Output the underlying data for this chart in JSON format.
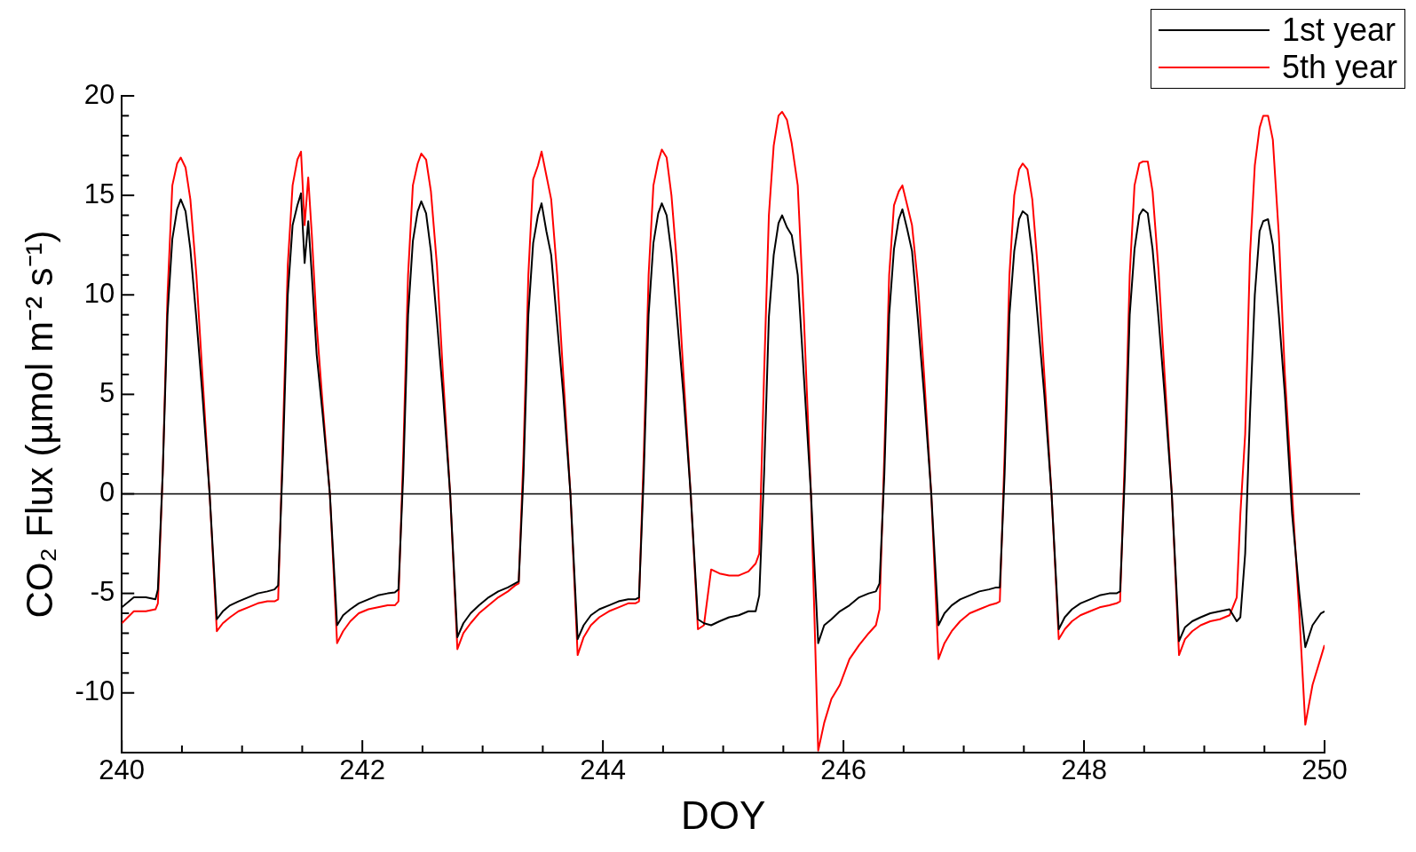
{
  "chart_data": {
    "type": "line",
    "xlabel": "DOY",
    "ylabel": "CO₂ Flux (µmol m⁻² s⁻¹)",
    "x": [
      240,
      240.1,
      240.2,
      240.28,
      240.3,
      240.34,
      240.38,
      240.42,
      240.46,
      240.49,
      240.53,
      240.57,
      240.62,
      240.67,
      240.73,
      240.79,
      240.84,
      240.9,
      240.97,
      241.05,
      241.13,
      241.21,
      241.27,
      241.3,
      241.34,
      241.38,
      241.42,
      241.46,
      241.49,
      241.52,
      241.55,
      241.58,
      241.62,
      241.67,
      241.73,
      241.79,
      241.84,
      241.9,
      241.97,
      242.05,
      242.13,
      242.21,
      242.27,
      242.3,
      242.34,
      242.38,
      242.42,
      242.46,
      242.49,
      242.53,
      242.57,
      242.62,
      242.67,
      242.73,
      242.79,
      242.84,
      242.9,
      242.97,
      243.05,
      243.13,
      243.21,
      243.27,
      243.3,
      243.34,
      243.38,
      243.42,
      243.46,
      243.49,
      243.53,
      243.57,
      243.62,
      243.67,
      243.73,
      243.79,
      243.84,
      243.9,
      243.97,
      244.05,
      244.13,
      244.21,
      244.27,
      244.3,
      244.34,
      244.38,
      244.42,
      244.46,
      244.49,
      244.53,
      244.57,
      244.62,
      244.67,
      244.73,
      244.79,
      244.84,
      244.9,
      244.97,
      245.05,
      245.13,
      245.21,
      245.27,
      245.3,
      245.34,
      245.38,
      245.42,
      245.46,
      245.49,
      245.53,
      245.57,
      245.62,
      245.67,
      245.73,
      245.79,
      245.84,
      245.9,
      245.97,
      246.05,
      246.13,
      246.21,
      246.27,
      246.3,
      246.34,
      246.38,
      246.42,
      246.46,
      246.49,
      246.53,
      246.57,
      246.62,
      246.67,
      246.73,
      246.79,
      246.84,
      246.9,
      246.97,
      247.05,
      247.13,
      247.21,
      247.27,
      247.3,
      247.34,
      247.38,
      247.42,
      247.46,
      247.49,
      247.53,
      247.57,
      247.62,
      247.67,
      247.73,
      247.79,
      247.84,
      247.9,
      247.97,
      248.05,
      248.13,
      248.21,
      248.27,
      248.3,
      248.34,
      248.38,
      248.42,
      248.46,
      248.49,
      248.53,
      248.57,
      248.62,
      248.67,
      248.73,
      248.79,
      248.84,
      248.9,
      248.97,
      249.05,
      249.13,
      249.21,
      249.27,
      249.3,
      249.34,
      249.38,
      249.42,
      249.46,
      249.49,
      249.53,
      249.57,
      249.62,
      249.67,
      249.73,
      249.79,
      249.84,
      249.9,
      249.97,
      250
    ],
    "series": [
      {
        "name": "1st year",
        "color": "#000000",
        "values": [
          -5.7,
          -5.2,
          -5.2,
          -5.3,
          -4.8,
          1,
          9,
          12.8,
          14.3,
          14.8,
          14.2,
          12.3,
          8.8,
          5,
          0,
          -6.3,
          -5.9,
          -5.6,
          -5.4,
          -5.2,
          -5,
          -4.9,
          -4.8,
          -4.6,
          2,
          10,
          13.5,
          14.5,
          15.1,
          11.6,
          13.7,
          11,
          7,
          4,
          0,
          -6.6,
          -6.1,
          -5.8,
          -5.5,
          -5.3,
          -5.1,
          -5,
          -4.95,
          -4.8,
          1,
          9,
          12.7,
          14.2,
          14.7,
          14.1,
          12.2,
          8.7,
          5,
          0,
          -7.2,
          -6.5,
          -6,
          -5.6,
          -5.2,
          -4.9,
          -4.7,
          -4.5,
          -4.4,
          1,
          9,
          12.6,
          14,
          14.6,
          13.2,
          12,
          8.5,
          5,
          0,
          -7.3,
          -6.6,
          -6.1,
          -5.8,
          -5.6,
          -5.4,
          -5.3,
          -5.3,
          -5.2,
          1,
          9,
          12.6,
          14.1,
          14.6,
          14,
          12.1,
          8.6,
          5,
          0,
          -6.3,
          -6.5,
          -6.6,
          -6.4,
          -6.2,
          -6.1,
          -5.9,
          -5.9,
          -5.1,
          1,
          8.9,
          12,
          13.6,
          14,
          13.4,
          13,
          11,
          6,
          0,
          -7.5,
          -6.6,
          -6.3,
          -5.9,
          -5.6,
          -5.2,
          -5,
          -4.9,
          -4.5,
          1,
          9,
          12.3,
          13.8,
          14.3,
          13.3,
          12.2,
          8.7,
          5,
          0,
          -6.6,
          -6,
          -5.6,
          -5.3,
          -5.1,
          -4.9,
          -4.8,
          -4.7,
          -4.7,
          1,
          9,
          12.2,
          13.8,
          14.2,
          14,
          12,
          8.5,
          5,
          0,
          -6.8,
          -6.2,
          -5.8,
          -5.5,
          -5.3,
          -5.1,
          -5,
          -5,
          -4.9,
          1,
          9,
          12.3,
          14,
          14.3,
          14.1,
          12.3,
          8.8,
          5,
          0,
          -7.4,
          -6.7,
          -6.4,
          -6.2,
          -6,
          -5.9,
          -5.8,
          -6.4,
          -6.2,
          -3,
          4,
          10,
          13.2,
          13.7,
          13.8,
          12.5,
          9,
          5,
          -1,
          -5,
          -7.7,
          -6.6,
          -6,
          -5.9
        ]
      },
      {
        "name": "5th year",
        "color": "#ff0000",
        "values": [
          -6.5,
          -5.9,
          -5.9,
          -5.8,
          -5.5,
          1,
          10,
          15.5,
          16.6,
          16.9,
          16.4,
          14.8,
          11,
          6,
          0,
          -6.9,
          -6.5,
          -6.2,
          -5.9,
          -5.7,
          -5.5,
          -5.4,
          -5.4,
          -5.3,
          3,
          11.5,
          15.5,
          16.8,
          17.2,
          13.5,
          15.9,
          13,
          8.5,
          4.5,
          0,
          -7.5,
          -6.9,
          -6.4,
          -6,
          -5.8,
          -5.7,
          -5.6,
          -5.6,
          -5.4,
          2,
          11,
          15.5,
          16.6,
          17.1,
          16.8,
          15.2,
          11.5,
          6,
          0,
          -7.8,
          -7,
          -6.5,
          -6,
          -5.6,
          -5.2,
          -4.9,
          -4.6,
          -4.5,
          2,
          11,
          15.8,
          16.5,
          17.2,
          16,
          14.8,
          11,
          6,
          0,
          -8.1,
          -7.2,
          -6.6,
          -6.2,
          -5.9,
          -5.7,
          -5.5,
          -5.5,
          -5.4,
          2,
          11,
          15.5,
          16.7,
          17.3,
          16.9,
          15,
          11.2,
          6,
          0,
          -6.8,
          -6.6,
          -3.8,
          -4,
          -4.1,
          -4.1,
          -3.9,
          -3.5,
          -3,
          6,
          14,
          17.5,
          19,
          19.2,
          18.8,
          17.6,
          15.5,
          9,
          0,
          -12.9,
          -11.5,
          -10.3,
          -9.6,
          -8.3,
          -7.6,
          -7,
          -6.6,
          -5.8,
          2,
          11,
          14.5,
          15.2,
          15.5,
          14.5,
          13.5,
          10.5,
          6,
          0,
          -8.3,
          -7.5,
          -6.9,
          -6.4,
          -6,
          -5.8,
          -5.6,
          -5.5,
          -5.4,
          2,
          11,
          15,
          16.3,
          16.6,
          16.3,
          14.8,
          11,
          6,
          0,
          -7.3,
          -6.8,
          -6.4,
          -6.1,
          -5.9,
          -5.7,
          -5.6,
          -5.5,
          -5.4,
          2,
          11,
          15.5,
          16.6,
          16.7,
          16.7,
          15.2,
          11.2,
          6,
          0,
          -8.1,
          -7.3,
          -6.9,
          -6.6,
          -6.4,
          -6.3,
          -6.1,
          -5.2,
          -1,
          3,
          12,
          16.5,
          18.4,
          19,
          19,
          17.8,
          13,
          6,
          0,
          -6,
          -11.6,
          -9.6,
          -8.2,
          -7.6
        ]
      }
    ],
    "xlim": [
      240,
      250
    ],
    "xticks": [
      240,
      {
        "value": 240.5,
        "label": null
      },
      {
        "value": 241,
        "label": null
      },
      {
        "value": 241.5,
        "label": null
      },
      242,
      {
        "value": 242.5,
        "label": null
      },
      {
        "value": 243,
        "label": null
      },
      {
        "value": 243.5,
        "label": null
      },
      244,
      {
        "value": 244.5,
        "label": null
      },
      {
        "value": 245,
        "label": null
      },
      {
        "value": 245.5,
        "label": null
      },
      246,
      {
        "value": 246.5,
        "label": null
      },
      {
        "value": 247,
        "label": null
      },
      {
        "value": 247.5,
        "label": null
      },
      248,
      {
        "value": 248.5,
        "label": null
      },
      {
        "value": 249,
        "label": null
      },
      {
        "value": 249.5,
        "label": null
      },
      250
    ],
    "ylim": [
      -13,
      20
    ],
    "yticks": [
      -10,
      {
        "value": -9,
        "label": null
      },
      {
        "value": -8,
        "label": null
      },
      {
        "value": -7,
        "label": null
      },
      {
        "value": -6,
        "label": null
      },
      -5,
      {
        "value": -4,
        "label": null
      },
      {
        "value": -3,
        "label": null
      },
      {
        "value": -2,
        "label": null
      },
      {
        "value": -1,
        "label": null
      },
      0,
      {
        "value": 1,
        "label": null
      },
      {
        "value": 2,
        "label": null
      },
      {
        "value": 3,
        "label": null
      },
      {
        "value": 4,
        "label": null
      },
      5,
      {
        "value": 6,
        "label": null
      },
      {
        "value": 7,
        "label": null
      },
      {
        "value": 8,
        "label": null
      },
      {
        "value": 9,
        "label": null
      },
      10,
      {
        "value": 11,
        "label": null
      },
      {
        "value": 12,
        "label": null
      },
      {
        "value": 13,
        "label": null
      },
      {
        "value": 14,
        "label": null
      },
      15,
      {
        "value": 16,
        "label": null
      },
      {
        "value": 17,
        "label": null
      },
      {
        "value": 18,
        "label": null
      },
      {
        "value": 19,
        "label": null
      },
      20
    ],
    "ref_lines": [
      {
        "axis": "y",
        "value": 0,
        "color": "#000000"
      }
    ],
    "legend": "top right",
    "marker": "none",
    "line_style": "solid"
  }
}
